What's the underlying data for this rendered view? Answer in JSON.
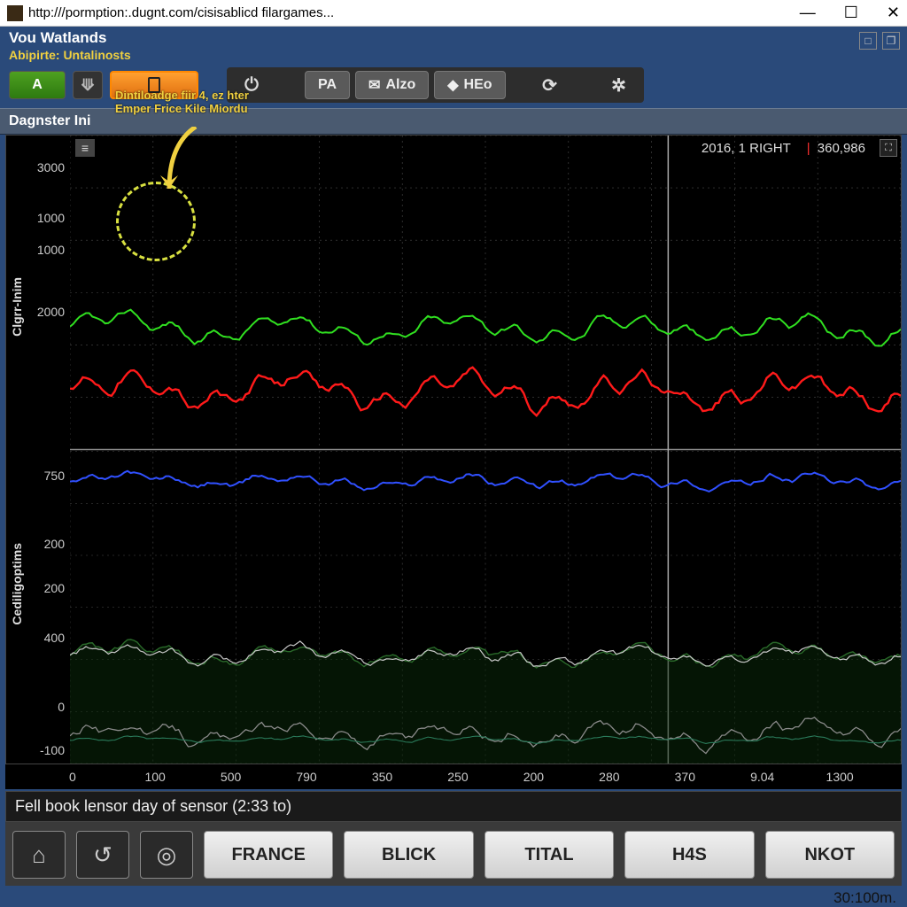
{
  "browser": {
    "url": "http:///pormption:.dugnt.com/cisisablicd filargames..."
  },
  "header": {
    "title": "Vou Watlands",
    "subtitle": "Abipirte: Untalinosts",
    "btn_a": "A",
    "btn_pa": "PA",
    "btn_alzo": "Alzo",
    "btn_heo": "HEo",
    "tip_line1": "Dintiloadge fiir 4, ez hter",
    "tip_line2": "Emper Frice Kile Miordu"
  },
  "panel_title": "Dagnster Ini",
  "chart": {
    "top": {
      "ylabel": "Clgrr-Inim",
      "yticks": [
        "3000",
        "1000",
        "1000",
        "2000"
      ],
      "ylim": [
        0,
        3500
      ],
      "series": [
        {
          "name": "green",
          "color": "#30e020",
          "width": 2,
          "base": 1350,
          "amp": 120,
          "noise": 60
        },
        {
          "name": "red",
          "color": "#ff1a1a",
          "width": 2.4,
          "base": 650,
          "amp": 160,
          "noise": 90
        }
      ],
      "grid_color": "#4a4a4a",
      "background": "#000000",
      "readout_left": "2016, 1 RIGHT",
      "readout_right": "360,986"
    },
    "bottom": {
      "ylabel": "Cediligoptims",
      "yticks": [
        "750",
        "200",
        "200",
        "400",
        "0",
        "-100"
      ],
      "ylim": [
        -150,
        900
      ],
      "series": [
        {
          "name": "blue",
          "color": "#3050ff",
          "width": 2,
          "base": 800,
          "amp": 20,
          "noise": 15
        },
        {
          "name": "dgreen",
          "color": "#2a6a2a",
          "width": 1.4,
          "base": 215,
          "amp": 25,
          "noise": 18,
          "fill": "#0a2a0a"
        },
        {
          "name": "white",
          "color": "#c8c8c8",
          "width": 1.2,
          "base": 210,
          "amp": 25,
          "noise": 18
        },
        {
          "name": "gray",
          "color": "#8a8a8a",
          "width": 1.3,
          "base": -50,
          "amp": 30,
          "noise": 25
        },
        {
          "name": "teal",
          "color": "#2a7a5a",
          "width": 1.1,
          "base": -70,
          "amp": 8,
          "noise": 6
        }
      ],
      "grid_color": "#4a4a4a",
      "background": "#000000"
    },
    "xticks": [
      "0",
      "100",
      "500",
      "790",
      "350",
      "250",
      "200",
      "280",
      "370",
      "9.04",
      "1300"
    ]
  },
  "status_text": "Fell book lensor day of sensor (2:33 to)",
  "bottom_buttons": [
    "FRANCE",
    "BLICK",
    "TITAL",
    "H4S",
    "NKOT"
  ],
  "footer": "30:100m."
}
